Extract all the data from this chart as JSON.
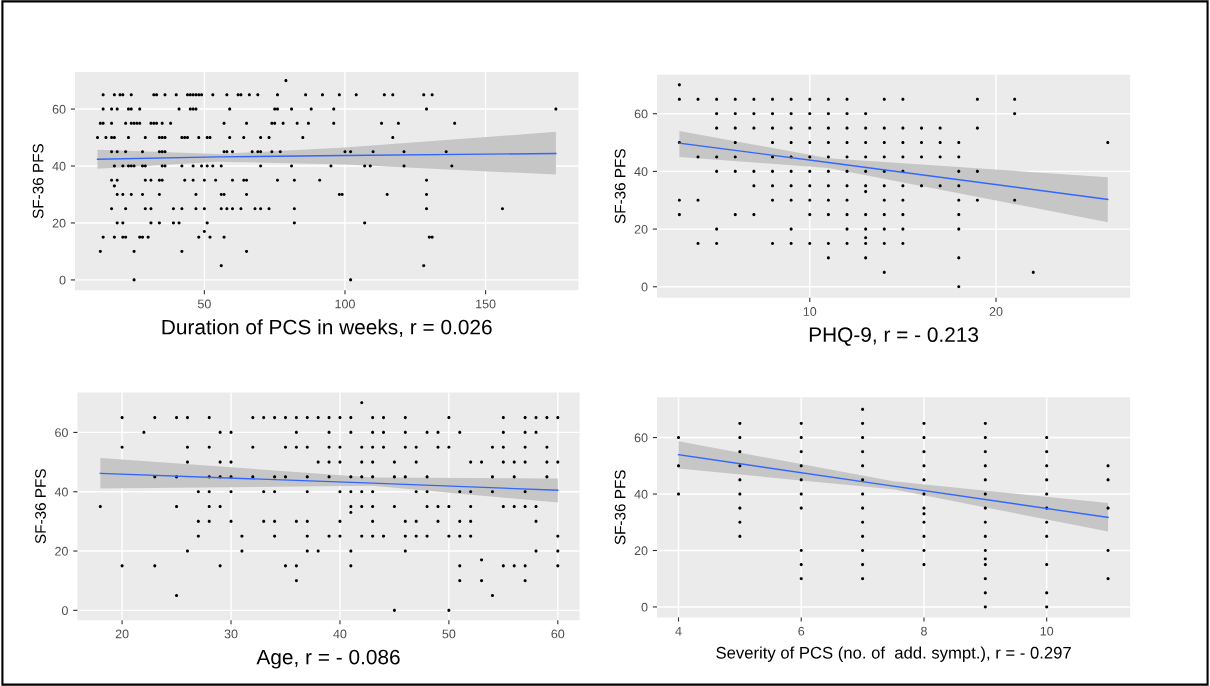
{
  "chart_data": [
    {
      "type": "scatter",
      "xlabel": "Duration of PCS in weeks, r = 0.026",
      "ylabel": "SF-36 PFS",
      "xlim": [
        4,
        183
      ],
      "ylim": [
        -3.6,
        73
      ],
      "xticks": [
        50,
        100,
        150
      ],
      "yticks": [
        0,
        20,
        40,
        60
      ],
      "grid": true,
      "marker": "circle",
      "series": [
        {
          "color": "#000000",
          "x": [
            14,
            18,
            20,
            21,
            24,
            32,
            33,
            36,
            40,
            44,
            45,
            46,
            47,
            48,
            49,
            53,
            58,
            62,
            63,
            66,
            69,
            76,
            86,
            92,
            98,
            104,
            114,
            117,
            128,
            131,
            79,
            14,
            17,
            19,
            23,
            24,
            27,
            41,
            45,
            46,
            47,
            59,
            75,
            76,
            81,
            88,
            96,
            129,
            175,
            13,
            14,
            17,
            22,
            24,
            25,
            26,
            27,
            31,
            32,
            33,
            35,
            38,
            57,
            65,
            74,
            75,
            78,
            83,
            87,
            96,
            113,
            119,
            139,
            12,
            15,
            17,
            18,
            23,
            29,
            34,
            35,
            36,
            42,
            43,
            44,
            48,
            51,
            52,
            59,
            64,
            70,
            73,
            85,
            117,
            17,
            19,
            22,
            28,
            34,
            35,
            36,
            57,
            58,
            60,
            67,
            69,
            70,
            74,
            77,
            100,
            102,
            110,
            121,
            136,
            18,
            21,
            23,
            24,
            25,
            28,
            29,
            35,
            36,
            42,
            46,
            49,
            51,
            53,
            56,
            70,
            81,
            95,
            107,
            109,
            121,
            138,
            17,
            19,
            29,
            31,
            34,
            35,
            43,
            46,
            50,
            54,
            60,
            64,
            65,
            76,
            82,
            91,
            129,
            18,
            19,
            21,
            24,
            28,
            34,
            47,
            56,
            57,
            65,
            98,
            99,
            115,
            129,
            17,
            22,
            29,
            31,
            39,
            42,
            47,
            50,
            56,
            58,
            60,
            63,
            68,
            70,
            73,
            82,
            129,
            156,
            19,
            21,
            31,
            34,
            39,
            41,
            51,
            82,
            107,
            50,
            14,
            18,
            21,
            22,
            27,
            28,
            30,
            48,
            52,
            57,
            130,
            131,
            13,
            25,
            42,
            65,
            56,
            128,
            25,
            102
          ],
          "values": [
            65,
            65,
            65,
            65,
            65,
            65,
            65,
            65,
            65,
            65,
            65,
            65,
            65,
            65,
            65,
            65,
            65,
            65,
            65,
            65,
            65,
            65,
            65,
            65,
            65,
            65,
            65,
            65,
            65,
            65,
            70,
            60,
            60,
            60,
            60,
            60,
            60,
            60,
            60,
            60,
            60,
            60,
            60,
            60,
            60,
            60,
            60,
            60,
            60,
            55,
            55,
            55,
            55,
            55,
            55,
            55,
            55,
            55,
            55,
            55,
            55,
            55,
            55,
            55,
            55,
            55,
            55,
            55,
            55,
            55,
            55,
            55,
            55,
            50,
            50,
            50,
            50,
            50,
            50,
            50,
            50,
            50,
            50,
            50,
            50,
            50,
            50,
            50,
            50,
            50,
            50,
            50,
            50,
            50,
            45,
            45,
            45,
            45,
            45,
            45,
            45,
            45,
            45,
            45,
            45,
            45,
            45,
            45,
            45,
            45,
            45,
            45,
            45,
            45,
            40,
            40,
            40,
            40,
            40,
            40,
            40,
            40,
            40,
            40,
            40,
            40,
            40,
            40,
            40,
            40,
            40,
            40,
            40,
            40,
            40,
            40,
            35,
            35,
            35,
            35,
            35,
            35,
            35,
            35,
            35,
            35,
            35,
            35,
            35,
            35,
            35,
            35,
            35,
            33,
            30,
            30,
            30,
            30,
            30,
            30,
            30,
            30,
            30,
            30,
            30,
            30,
            30,
            25,
            25,
            25,
            25,
            25,
            25,
            25,
            25,
            25,
            25,
            25,
            25,
            25,
            25,
            25,
            25,
            25,
            25,
            20,
            20,
            20,
            20,
            20,
            20,
            20,
            20,
            20,
            17,
            15,
            15,
            15,
            15,
            15,
            15,
            15,
            15,
            15,
            15,
            15,
            15,
            10,
            10,
            10,
            10,
            5,
            5,
            0,
            0
          ]
        },
        {
          "type": "line",
          "marker": "none",
          "color": "#3366ff",
          "x": [
            12,
            55,
            100,
            175
          ],
          "values": [
            42.4,
            43.2,
            43.7,
            44.4
          ],
          "lower": [
            39,
            41.5,
            40.5,
            37
          ],
          "upper": [
            45.7,
            44.2,
            46.5,
            52
          ]
        }
      ]
    },
    {
      "type": "scatter",
      "xlabel": "PHQ-9, r = - 0.213",
      "ylabel": "SF-36 PFS",
      "xlim": [
        1.8,
        27.2
      ],
      "ylim": [
        -3.8,
        73.5
      ],
      "xticks": [
        10,
        20
      ],
      "yticks": [
        0,
        20,
        40,
        60
      ],
      "grid": true,
      "marker": "circle",
      "series": [
        {
          "color": "#000000",
          "x": [
            3,
            3,
            3,
            3,
            3,
            4,
            4,
            4,
            4,
            5,
            5,
            5,
            5,
            5,
            5,
            5,
            6,
            6,
            6,
            6,
            6,
            6,
            6,
            7,
            7,
            7,
            7,
            7,
            7,
            8,
            8,
            8,
            8,
            8,
            8,
            8,
            8,
            8,
            9,
            9,
            9,
            9,
            9,
            9,
            9,
            9,
            9,
            9,
            10,
            10,
            10,
            10,
            10,
            10,
            10,
            10,
            10,
            10,
            11,
            11,
            11,
            11,
            11,
            11,
            11,
            11,
            11,
            11,
            11,
            12,
            12,
            12,
            12,
            12,
            12,
            12,
            12,
            12,
            12,
            12,
            13,
            13,
            13,
            13,
            13,
            13,
            13,
            13,
            13,
            13,
            13,
            13,
            14,
            14,
            14,
            14,
            14,
            14,
            14,
            14,
            14,
            14,
            14,
            15,
            15,
            15,
            15,
            15,
            15,
            15,
            15,
            15,
            15,
            16,
            16,
            16,
            16,
            17,
            17,
            17,
            17,
            18,
            18,
            18,
            18,
            18,
            18,
            18,
            18,
            18,
            19,
            19,
            19,
            19,
            21,
            21,
            21,
            22,
            26
          ],
          "values": [
            70,
            65,
            50,
            30,
            25,
            65,
            45,
            30,
            15,
            65,
            60,
            55,
            45,
            40,
            20,
            15,
            65,
            60,
            55,
            50,
            45,
            40,
            25,
            65,
            60,
            55,
            40,
            35,
            25,
            65,
            60,
            55,
            50,
            45,
            40,
            35,
            30,
            15,
            65,
            60,
            55,
            50,
            45,
            40,
            35,
            30,
            20,
            15,
            65,
            60,
            55,
            50,
            45,
            40,
            35,
            30,
            25,
            15,
            65,
            60,
            55,
            50,
            45,
            40,
            35,
            30,
            25,
            15,
            10,
            65,
            60,
            55,
            50,
            45,
            40,
            35,
            30,
            25,
            20,
            15,
            60,
            55,
            50,
            45,
            40,
            35,
            33,
            25,
            20,
            17,
            15,
            10,
            65,
            55,
            50,
            45,
            40,
            35,
            30,
            25,
            20,
            15,
            5,
            65,
            55,
            50,
            45,
            40,
            35,
            30,
            25,
            20,
            15,
            55,
            50,
            45,
            35,
            55,
            50,
            45,
            35,
            50,
            45,
            40,
            35,
            30,
            25,
            20,
            10,
            0,
            65,
            55,
            40,
            30,
            65,
            60,
            30,
            5,
            50
          ]
        },
        {
          "type": "line",
          "marker": "none",
          "color": "#3366ff",
          "x": [
            3,
            11,
            26
          ],
          "values": [
            49.8,
            43.1,
            30.3
          ],
          "lower": [
            45,
            41.2,
            22.4
          ],
          "upper": [
            54,
            44.6,
            38
          ]
        }
      ]
    },
    {
      "type": "scatter",
      "xlabel": "Age, r = - 0.086",
      "ylabel": "SF-36 PFS",
      "xlim": [
        15.9,
        62
      ],
      "ylim": [
        -3.3,
        73.5
      ],
      "xticks": [
        20,
        30,
        40,
        50,
        60
      ],
      "yticks": [
        0,
        20,
        40,
        60
      ],
      "grid": true,
      "marker": "circle",
      "series": [
        {
          "color": "#000000",
          "x": [
            42,
            20,
            23,
            25,
            26,
            28,
            32,
            33,
            34,
            35,
            36,
            37,
            38,
            39,
            40,
            41,
            43,
            44,
            46,
            50,
            55,
            57,
            58,
            59,
            60,
            22,
            29,
            30,
            36,
            39,
            41,
            43,
            44,
            46,
            48,
            49,
            51,
            55,
            57,
            58,
            20,
            26,
            28,
            32,
            35,
            36,
            37,
            39,
            40,
            42,
            43,
            44,
            46,
            47,
            49,
            50,
            54,
            55,
            57,
            59,
            26,
            29,
            30,
            38,
            39,
            40,
            42,
            43,
            45,
            47,
            52,
            53,
            55,
            56,
            57,
            59,
            60,
            23,
            25,
            28,
            29,
            30,
            32,
            34,
            35,
            37,
            39,
            41,
            42,
            43,
            45,
            46,
            48,
            54,
            56,
            59,
            27,
            28,
            30,
            33,
            34,
            37,
            40,
            41,
            42,
            43,
            47,
            48,
            51,
            52,
            54,
            57,
            18,
            25,
            28,
            29,
            41,
            42,
            43,
            45,
            48,
            49,
            50,
            52,
            55,
            56,
            57,
            58,
            41,
            27,
            28,
            30,
            33,
            34,
            36,
            37,
            40,
            43,
            46,
            47,
            49,
            51,
            52,
            58,
            27,
            31,
            34,
            37,
            39,
            40,
            42,
            43,
            44,
            46,
            47,
            48,
            50,
            51,
            52,
            60,
            26,
            31,
            37,
            38,
            41,
            46,
            58,
            60,
            53,
            20,
            23,
            29,
            35,
            36,
            41,
            51,
            55,
            56,
            57,
            60,
            36,
            51,
            53,
            57,
            25,
            54,
            45,
            50
          ],
          "values": [
            70,
            65,
            65,
            65,
            65,
            65,
            65,
            65,
            65,
            65,
            65,
            65,
            65,
            65,
            65,
            65,
            65,
            65,
            65,
            65,
            65,
            65,
            65,
            65,
            65,
            60,
            60,
            60,
            60,
            60,
            60,
            60,
            60,
            60,
            60,
            60,
            60,
            60,
            60,
            60,
            55,
            55,
            55,
            55,
            55,
            55,
            55,
            55,
            55,
            55,
            55,
            55,
            55,
            55,
            55,
            55,
            55,
            55,
            55,
            55,
            50,
            50,
            50,
            50,
            50,
            50,
            50,
            50,
            50,
            50,
            50,
            50,
            50,
            50,
            50,
            50,
            50,
            45,
            45,
            45,
            45,
            45,
            45,
            45,
            45,
            45,
            45,
            45,
            45,
            45,
            45,
            45,
            45,
            45,
            45,
            45,
            40,
            40,
            40,
            40,
            40,
            40,
            40,
            40,
            40,
            40,
            40,
            40,
            40,
            40,
            40,
            40,
            35,
            35,
            35,
            35,
            35,
            35,
            35,
            35,
            35,
            35,
            35,
            35,
            35,
            35,
            35,
            35,
            33,
            30,
            30,
            30,
            30,
            30,
            30,
            30,
            30,
            30,
            30,
            30,
            30,
            30,
            30,
            30,
            25,
            25,
            25,
            25,
            25,
            25,
            25,
            25,
            25,
            25,
            25,
            25,
            25,
            25,
            25,
            25,
            20,
            20,
            20,
            20,
            20,
            20,
            20,
            20,
            17,
            15,
            15,
            15,
            15,
            15,
            15,
            15,
            15,
            15,
            15,
            15,
            10,
            10,
            10,
            10,
            5,
            5,
            0,
            0
          ]
        },
        {
          "type": "line",
          "marker": "none",
          "color": "#3366ff",
          "x": [
            18,
            43,
            60
          ],
          "values": [
            46.2,
            42.9,
            40.5
          ],
          "lower": [
            41.1,
            42,
            36.4
          ],
          "upper": [
            51.4,
            44.8,
            44.5
          ]
        }
      ]
    },
    {
      "type": "scatter",
      "xlabel": "Severity of PCS (no. of  add. sympt.), r = - 0.297",
      "ylabel": "SF-36 PFS",
      "xlim": [
        3.65,
        11.36
      ],
      "ylim": [
        -3.7,
        74.3
      ],
      "xticks": [
        4,
        6,
        8,
        10
      ],
      "yticks": [
        0,
        20,
        40,
        60
      ],
      "grid": true,
      "marker": "circle",
      "series": [
        {
          "color": "#000000",
          "x": [
            4,
            4,
            4,
            5,
            5,
            5,
            5,
            5,
            5,
            5,
            5,
            5,
            6,
            6,
            6,
            6,
            6,
            6,
            6,
            6,
            6,
            6,
            7,
            7,
            7,
            7,
            7,
            7,
            7,
            7,
            7,
            7,
            7,
            7,
            7,
            8,
            8,
            8,
            8,
            8,
            8,
            8,
            8,
            8,
            8,
            8,
            8,
            9,
            9,
            9,
            9,
            9,
            9,
            9,
            9,
            9,
            9,
            9,
            9,
            9,
            9,
            9,
            10,
            10,
            10,
            10,
            10,
            10,
            10,
            10,
            10,
            10,
            10,
            11,
            11,
            11,
            11,
            11
          ],
          "values": [
            60,
            50,
            40,
            65,
            60,
            55,
            50,
            45,
            40,
            35,
            30,
            25,
            65,
            60,
            55,
            50,
            45,
            40,
            35,
            20,
            15,
            10,
            70,
            65,
            60,
            55,
            50,
            45,
            40,
            35,
            30,
            25,
            20,
            15,
            10,
            65,
            60,
            55,
            50,
            45,
            40,
            35,
            33,
            30,
            25,
            20,
            15,
            65,
            60,
            55,
            50,
            45,
            40,
            35,
            30,
            25,
            20,
            17,
            15,
            10,
            5,
            0,
            60,
            55,
            50,
            45,
            40,
            35,
            30,
            25,
            15,
            5,
            0,
            50,
            45,
            35,
            20,
            10
          ]
        },
        {
          "type": "line",
          "marker": "none",
          "color": "#3366ff",
          "x": [
            4,
            7.5,
            11
          ],
          "values": [
            53.9,
            42.8,
            31.7
          ],
          "lower": [
            49,
            41.7,
            26.7
          ],
          "upper": [
            58.7,
            44.5,
            36.8
          ]
        }
      ]
    }
  ]
}
